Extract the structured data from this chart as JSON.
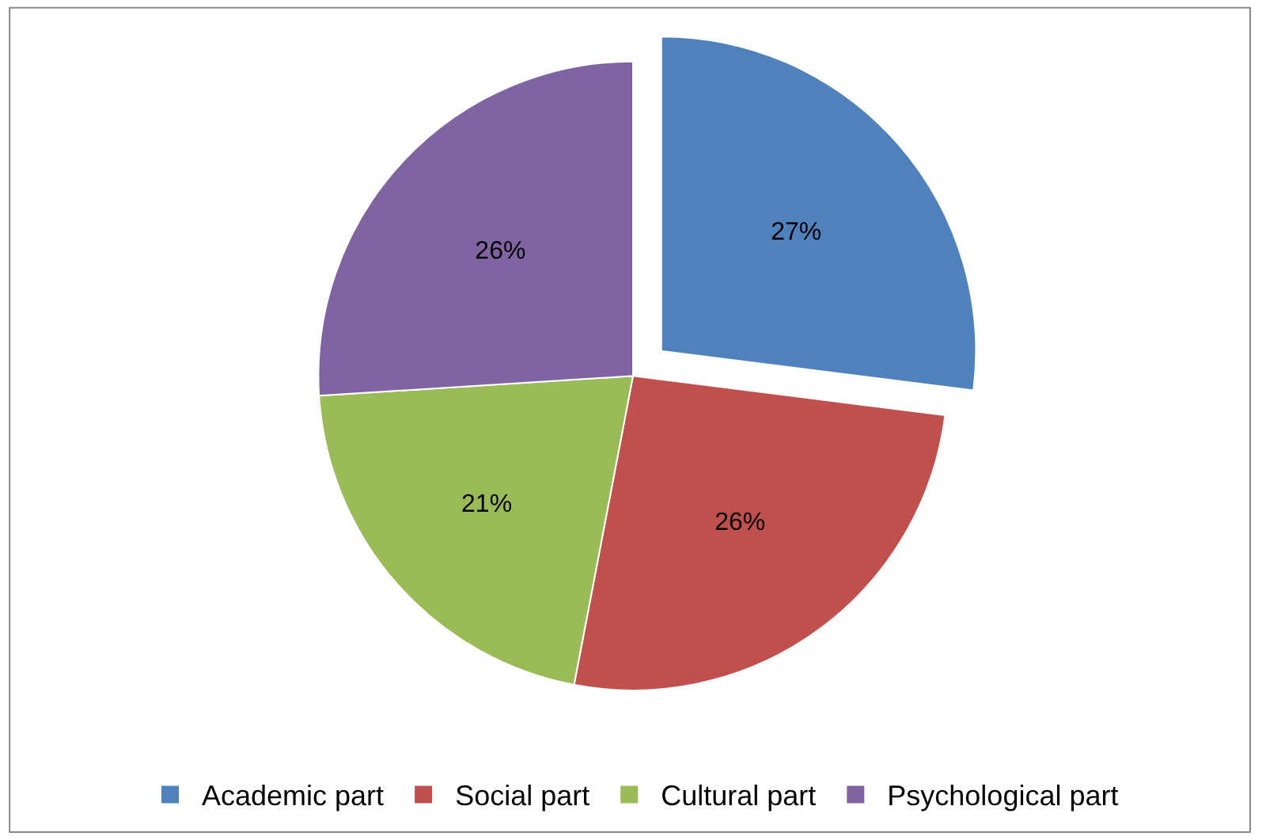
{
  "chart_data": {
    "type": "pie",
    "categories": [
      "Academic part",
      "Social part",
      "Cultural part",
      "Psychological part"
    ],
    "values": [
      27,
      26,
      21,
      26
    ],
    "value_labels": [
      "27%",
      "26%",
      "21%",
      "26%"
    ],
    "colors": [
      "#4f81bd",
      "#c0504d",
      "#9bbb59",
      "#8064a2"
    ],
    "legend": "bottom"
  }
}
